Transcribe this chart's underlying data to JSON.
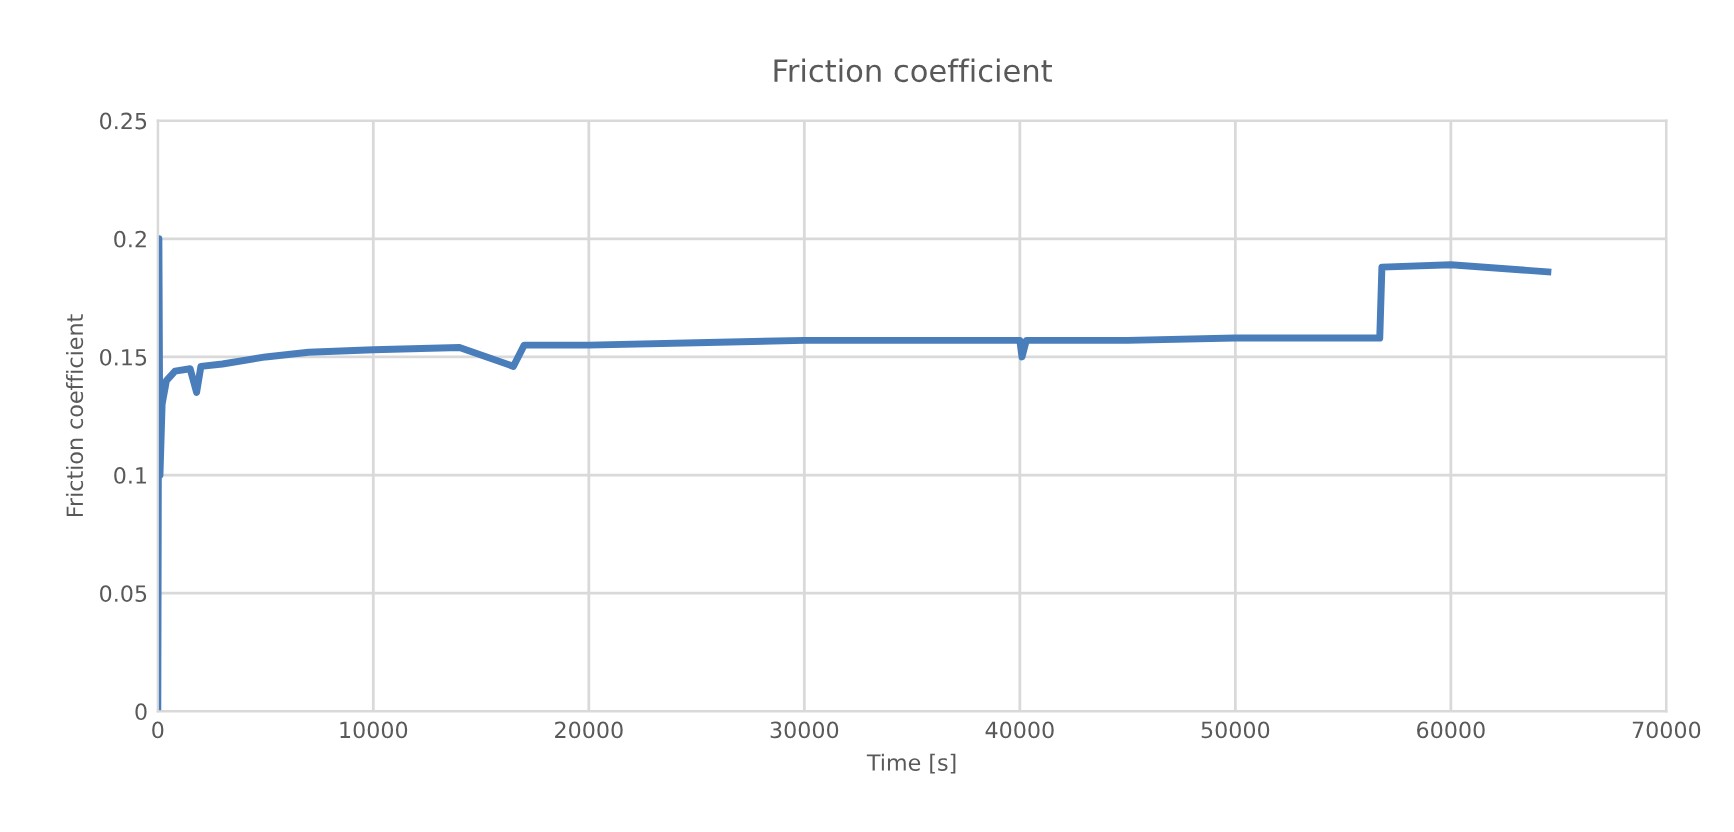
{
  "chart_data": {
    "type": "line",
    "title": "Friction coefficient",
    "xlabel": "Time [s]",
    "ylabel": "Friction coefficient",
    "series": [
      {
        "color": "#4a7ebb",
        "x": [
          0,
          50,
          100,
          200,
          400,
          800,
          1500,
          1800,
          2000,
          3000,
          5000,
          7000,
          10000,
          14000,
          16500,
          17000,
          20000,
          25000,
          30000,
          35000,
          40000,
          40100,
          40300,
          45000,
          50000,
          56700,
          56800,
          60000,
          64500
        ],
        "values": [
          0,
          0.2,
          0.1,
          0.13,
          0.14,
          0.144,
          0.145,
          0.135,
          0.146,
          0.147,
          0.15,
          0.152,
          0.153,
          0.154,
          0.146,
          0.155,
          0.155,
          0.156,
          0.157,
          0.157,
          0.157,
          0.15,
          0.157,
          0.157,
          0.158,
          0.158,
          0.188,
          0.189,
          0.186
        ]
      }
    ],
    "xlim": [
      0,
      70000
    ],
    "xticks": [
      0,
      10000,
      20000,
      30000,
      40000,
      50000,
      60000,
      70000
    ],
    "ylim": [
      0,
      0.25
    ],
    "yticks": [
      0,
      0.05,
      0.1,
      0.15,
      0.2,
      0.25
    ],
    "grid": true,
    "line_style": "solid",
    "marker": "none"
  }
}
